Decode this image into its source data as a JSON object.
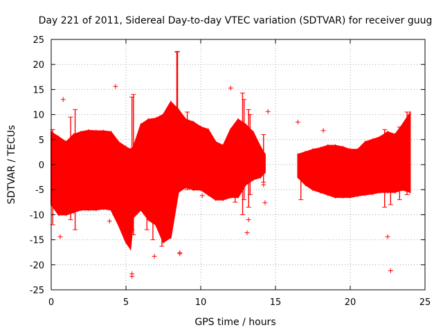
{
  "chart_data": {
    "type": "scatter",
    "title": "Day 221 of 2011, Sidereal Day-to-day VTEC variation (SDTVAR) for receiver guug",
    "xlabel": "GPS time / hours",
    "ylabel": "SDTVAR / TECUs",
    "xlim": [
      0,
      25
    ],
    "ylim": [
      -25,
      25
    ],
    "xticks": [
      0,
      5,
      10,
      15,
      20,
      25
    ],
    "yticks": [
      -25,
      -20,
      -15,
      -10,
      -5,
      0,
      5,
      10,
      15,
      20,
      25
    ],
    "xtick_labels": [
      "0",
      "5",
      "10",
      "15",
      "20",
      "25"
    ],
    "ytick_labels": [
      "-25",
      "-20",
      "-15",
      "-10",
      "-5",
      "0",
      "5",
      "10",
      "15",
      "20",
      "25"
    ],
    "grid": true,
    "marker": "+",
    "color": "#ff0000",
    "series": [
      {
        "name": "SDTVAR",
        "envelope": [
          {
            "x": 0.0,
            "lo": -8.0,
            "hi": 6.5
          },
          {
            "x": 0.5,
            "lo": -10.0,
            "hi": 5.5
          },
          {
            "x": 1.0,
            "lo": -10.0,
            "hi": 4.5
          },
          {
            "x": 1.5,
            "lo": -9.5,
            "hi": 6.0
          },
          {
            "x": 2.0,
            "lo": -9.0,
            "hi": 6.5
          },
          {
            "x": 2.5,
            "lo": -9.0,
            "hi": 6.8
          },
          {
            "x": 3.0,
            "lo": -9.0,
            "hi": 6.7
          },
          {
            "x": 3.5,
            "lo": -8.8,
            "hi": 6.7
          },
          {
            "x": 4.0,
            "lo": -9.0,
            "hi": 6.5
          },
          {
            "x": 4.5,
            "lo": -12.0,
            "hi": 4.5
          },
          {
            "x": 5.0,
            "lo": -15.5,
            "hi": 3.5
          },
          {
            "x": 5.3,
            "lo": -16.8,
            "hi": 3.0
          },
          {
            "x": 5.5,
            "lo": -10.5,
            "hi": 3.5
          },
          {
            "x": 6.0,
            "lo": -9.0,
            "hi": 8.0
          },
          {
            "x": 6.5,
            "lo": -11.0,
            "hi": 9.0
          },
          {
            "x": 7.0,
            "lo": -12.0,
            "hi": 9.2
          },
          {
            "x": 7.5,
            "lo": -15.5,
            "hi": 10.0
          },
          {
            "x": 8.0,
            "lo": -14.5,
            "hi": 12.5
          },
          {
            "x": 8.5,
            "lo": -5.5,
            "hi": 11.0
          },
          {
            "x": 9.0,
            "lo": -4.5,
            "hi": 9.0
          },
          {
            "x": 9.5,
            "lo": -5.0,
            "hi": 8.5
          },
          {
            "x": 10.0,
            "lo": -5.0,
            "hi": 7.5
          },
          {
            "x": 10.5,
            "lo": -6.0,
            "hi": 7.0
          },
          {
            "x": 11.0,
            "lo": -7.0,
            "hi": 4.5
          },
          {
            "x": 11.5,
            "lo": -7.0,
            "hi": 3.8
          },
          {
            "x": 12.0,
            "lo": -6.5,
            "hi": 7.0
          },
          {
            "x": 12.5,
            "lo": -6.5,
            "hi": 9.0
          },
          {
            "x": 13.0,
            "lo": -4.0,
            "hi": 8.0
          },
          {
            "x": 13.5,
            "lo": -3.0,
            "hi": 6.5
          },
          {
            "x": 14.0,
            "lo": -2.5,
            "hi": 3.5
          },
          {
            "x": 14.3,
            "lo": -1.5,
            "hi": 2.0
          }
        ],
        "envelope_2": [
          {
            "x": 16.5,
            "lo": -2.5,
            "hi": 2.0
          },
          {
            "x": 17.0,
            "lo": -4.0,
            "hi": 2.5
          },
          {
            "x": 17.5,
            "lo": -5.0,
            "hi": 3.0
          },
          {
            "x": 18.0,
            "lo": -5.5,
            "hi": 3.3
          },
          {
            "x": 18.5,
            "lo": -6.0,
            "hi": 3.8
          },
          {
            "x": 19.0,
            "lo": -6.5,
            "hi": 3.8
          },
          {
            "x": 19.5,
            "lo": -6.5,
            "hi": 3.5
          },
          {
            "x": 20.0,
            "lo": -6.5,
            "hi": 3.0
          },
          {
            "x": 20.5,
            "lo": -6.2,
            "hi": 3.0
          },
          {
            "x": 21.0,
            "lo": -6.0,
            "hi": 4.5
          },
          {
            "x": 21.5,
            "lo": -5.8,
            "hi": 5.0
          },
          {
            "x": 22.0,
            "lo": -5.5,
            "hi": 5.5
          },
          {
            "x": 22.5,
            "lo": -5.5,
            "hi": 6.5
          },
          {
            "x": 23.0,
            "lo": -5.5,
            "hi": 6.0
          },
          {
            "x": 23.5,
            "lo": -5.0,
            "hi": 8.0
          },
          {
            "x": 24.0,
            "lo": -5.5,
            "hi": 10.3
          }
        ],
        "spikes": [
          {
            "x": 8.4,
            "lo": 6.0,
            "hi": 22.5
          },
          {
            "x": 8.45,
            "lo": 6.0,
            "hi": 22.6
          },
          {
            "x": 5.4,
            "lo": -13.0,
            "hi": 13.5
          },
          {
            "x": 5.5,
            "lo": -14.0,
            "hi": 14.0
          },
          {
            "x": 1.6,
            "lo": -13.0,
            "hi": 11.0
          },
          {
            "x": 1.3,
            "lo": -11.0,
            "hi": 9.5
          },
          {
            "x": 0.1,
            "lo": -12.0,
            "hi": 7.0
          },
          {
            "x": 6.4,
            "lo": -13.0,
            "hi": 5.0
          },
          {
            "x": 6.8,
            "lo": -15.0,
            "hi": 3.0
          },
          {
            "x": 7.4,
            "lo": -16.3,
            "hi": 2.0
          },
          {
            "x": 12.8,
            "lo": -10.0,
            "hi": 14.3
          },
          {
            "x": 12.9,
            "lo": -7.0,
            "hi": 13.0
          },
          {
            "x": 13.2,
            "lo": -8.5,
            "hi": 11.0
          },
          {
            "x": 13.3,
            "lo": -6.0,
            "hi": 10.0
          },
          {
            "x": 14.2,
            "lo": -3.5,
            "hi": 6.0
          },
          {
            "x": 9.1,
            "lo": -5.0,
            "hi": 10.5
          },
          {
            "x": 12.3,
            "lo": -7.5,
            "hi": 7.0
          },
          {
            "x": 16.7,
            "lo": -7.0,
            "hi": 1.5
          },
          {
            "x": 22.3,
            "lo": -8.5,
            "hi": 7.0
          },
          {
            "x": 22.7,
            "lo": -8.0,
            "hi": 5.0
          },
          {
            "x": 23.3,
            "lo": -7.0,
            "hi": 7.5
          },
          {
            "x": 23.8,
            "lo": -6.0,
            "hi": 10.5
          }
        ],
        "outliers": [
          {
            "x": 0.8,
            "y": 13.0
          },
          {
            "x": 4.3,
            "y": 15.6
          },
          {
            "x": 3.9,
            "y": -11.3
          },
          {
            "x": 0.6,
            "y": -14.4
          },
          {
            "x": 5.4,
            "y": -21.8
          },
          {
            "x": 5.4,
            "y": -22.3
          },
          {
            "x": 6.9,
            "y": -18.3
          },
          {
            "x": 8.6,
            "y": -17.6
          },
          {
            "x": 8.6,
            "y": -17.8
          },
          {
            "x": 10.1,
            "y": -6.2
          },
          {
            "x": 12.0,
            "y": 15.3
          },
          {
            "x": 14.5,
            "y": 10.6
          },
          {
            "x": 14.3,
            "y": -7.6
          },
          {
            "x": 13.1,
            "y": -13.6
          },
          {
            "x": 13.2,
            "y": -11.0
          },
          {
            "x": 14.2,
            "y": -4.0
          },
          {
            "x": 16.5,
            "y": 8.5
          },
          {
            "x": 18.2,
            "y": 6.8
          },
          {
            "x": 22.5,
            "y": -14.4
          },
          {
            "x": 22.7,
            "y": -21.2
          }
        ]
      }
    ]
  }
}
